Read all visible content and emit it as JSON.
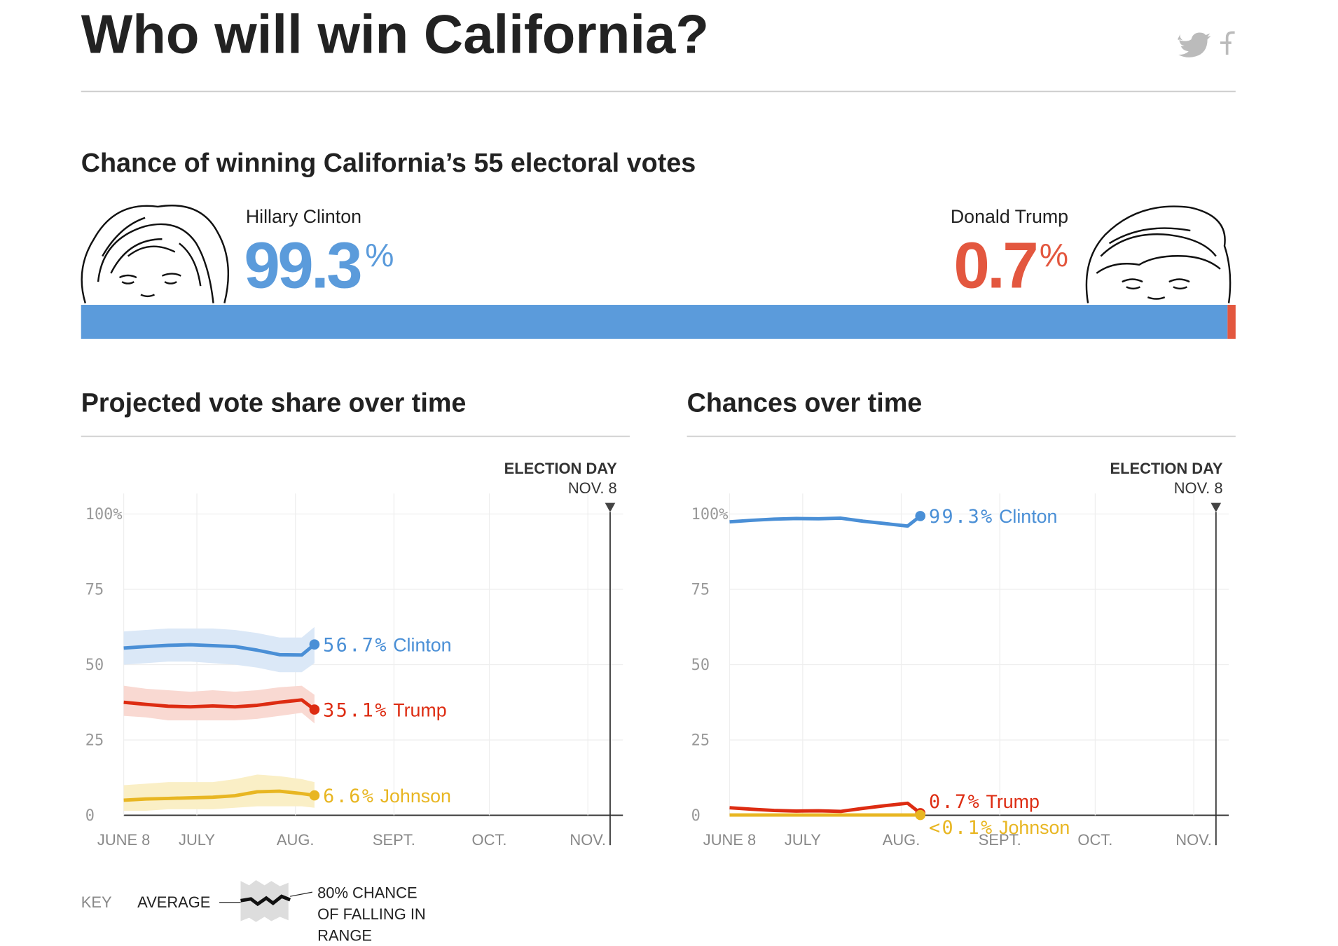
{
  "title": "Who will win California?",
  "key": {
    "label": "KEY",
    "average": "AVERAGE",
    "range": [
      "80% CHANCE",
      "OF FALLING IN",
      "RANGE"
    ]
  },
  "chart_data": [
    {
      "type": "hbar",
      "title": "Chance of winning California’s 55 electoral votes",
      "unit_label": "%",
      "xlim": [
        0,
        100
      ],
      "series": [
        {
          "name": "Hillary Clinton",
          "color": "#5b9bdb",
          "values": [
            99.3
          ]
        },
        {
          "name": "Donald Trump",
          "color": "#e3573f",
          "values": [
            0.7
          ]
        }
      ]
    },
    {
      "type": "line",
      "title": "Projected vote share over time",
      "annotation": [
        "ELECTION DAY",
        "NOV. 8"
      ],
      "annotation_x": "11-08",
      "x": [
        "06-08",
        "06-15",
        "06-22",
        "06-29",
        "07-06",
        "07-13",
        "07-20",
        "07-27",
        "08-03",
        "08-07"
      ],
      "xlim": [
        "06-08",
        "11-08"
      ],
      "xticks": [
        {
          "value": "06-08",
          "label": "JUNE 8"
        },
        {
          "value": "07-01",
          "label": "JULY"
        },
        {
          "value": "08-01",
          "label": "AUG."
        },
        {
          "value": "09-01",
          "label": "SEPT."
        },
        {
          "value": "10-01",
          "label": "OCT."
        },
        {
          "value": "11-01",
          "label": "NOV."
        }
      ],
      "ylim": [
        0,
        100
      ],
      "yticks": [
        0,
        25,
        50,
        75,
        {
          "value": 100,
          "label": "100%"
        }
      ],
      "grid": true,
      "series": [
        {
          "name": "Clinton",
          "color": "#4a8fd6",
          "band_color": "#dbe8f7",
          "values": [
            55.5,
            56,
            56.4,
            56.6,
            56.3,
            56,
            54.8,
            53.3,
            53.2,
            56.7
          ],
          "lower": [
            50,
            50.5,
            51,
            51,
            50.5,
            50,
            49,
            47.5,
            47.5,
            50.5
          ],
          "upper": [
            61,
            61.5,
            62,
            62,
            62,
            61.5,
            60.5,
            59,
            59,
            62.5
          ],
          "value_labels": [
            null,
            null,
            null,
            null,
            null,
            null,
            null,
            null,
            null,
            "56.7%"
          ]
        },
        {
          "name": "Trump",
          "color": "#dd2c12",
          "band_color": "#f9d9d2",
          "values": [
            37.5,
            36.8,
            36.2,
            36,
            36.3,
            36,
            36.5,
            37.5,
            38.3,
            35.1
          ],
          "lower": [
            33,
            32.5,
            31.5,
            31.5,
            31.5,
            31.5,
            32,
            33,
            34,
            30.5
          ],
          "upper": [
            43,
            42,
            41.5,
            41,
            41.5,
            41,
            41.5,
            42.5,
            43,
            40
          ],
          "value_labels": [
            null,
            null,
            null,
            null,
            null,
            null,
            null,
            null,
            null,
            "35.1%"
          ]
        },
        {
          "name": "Johnson",
          "color": "#e8b622",
          "band_color": "#faefc6",
          "values": [
            5,
            5.4,
            5.6,
            5.8,
            6,
            6.5,
            7.8,
            8,
            7.2,
            6.6
          ],
          "lower": [
            1.5,
            1.5,
            2,
            2,
            2,
            2.5,
            3,
            3,
            3,
            2.5
          ],
          "upper": [
            10,
            10.5,
            11,
            11,
            11,
            12,
            13.5,
            13,
            12,
            11
          ],
          "value_labels": [
            null,
            null,
            null,
            null,
            null,
            null,
            null,
            null,
            null,
            "6.6%"
          ]
        }
      ]
    },
    {
      "type": "line",
      "title": "Chances over time",
      "annotation": [
        "ELECTION DAY",
        "NOV. 8"
      ],
      "annotation_x": "11-08",
      "x": [
        "06-08",
        "06-15",
        "06-22",
        "06-29",
        "07-06",
        "07-13",
        "07-20",
        "07-27",
        "08-03",
        "08-07"
      ],
      "xlim": [
        "06-08",
        "11-08"
      ],
      "xticks": [
        {
          "value": "06-08",
          "label": "JUNE 8"
        },
        {
          "value": "07-01",
          "label": "JULY"
        },
        {
          "value": "08-01",
          "label": "AUG."
        },
        {
          "value": "09-01",
          "label": "SEPT."
        },
        {
          "value": "10-01",
          "label": "OCT."
        },
        {
          "value": "11-01",
          "label": "NOV."
        }
      ],
      "ylim": [
        0,
        100
      ],
      "yticks": [
        0,
        25,
        50,
        75,
        {
          "value": 100,
          "label": "100%"
        }
      ],
      "grid": true,
      "series": [
        {
          "name": "Clinton",
          "color": "#4a8fd6",
          "values": [
            97.4,
            97.9,
            98.3,
            98.5,
            98.4,
            98.6,
            97.6,
            96.8,
            96.0,
            99.3
          ],
          "value_labels": [
            null,
            null,
            null,
            null,
            null,
            null,
            null,
            null,
            null,
            "99.3%"
          ]
        },
        {
          "name": "Trump",
          "color": "#dd2c12",
          "values": [
            2.5,
            2.0,
            1.6,
            1.4,
            1.5,
            1.3,
            2.3,
            3.2,
            4.0,
            0.7
          ],
          "value_labels": [
            null,
            null,
            null,
            null,
            null,
            null,
            null,
            null,
            null,
            "0.7%"
          ]
        },
        {
          "name": "Johnson",
          "color": "#e8b622",
          "values": [
            0.1,
            0.1,
            0.1,
            0.1,
            0.1,
            0.1,
            0.1,
            0.1,
            0.1,
            0.1
          ],
          "value_labels": [
            null,
            null,
            null,
            null,
            null,
            null,
            null,
            null,
            null,
            "<0.1%"
          ]
        }
      ]
    }
  ]
}
